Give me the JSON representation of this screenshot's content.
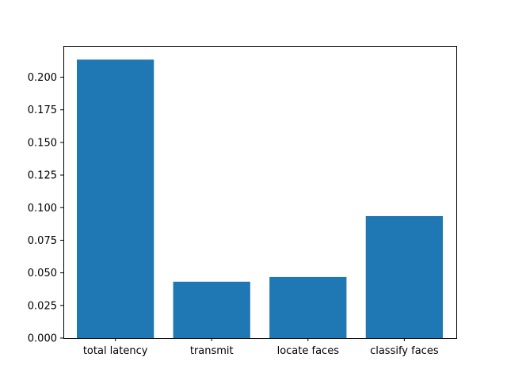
{
  "chart_data": {
    "type": "bar",
    "title": "",
    "xlabel": "",
    "ylabel": "",
    "categories": [
      "total latency",
      "transmit",
      "locate faces",
      "classify faces"
    ],
    "values": [
      0.2135,
      0.0432,
      0.0468,
      0.0935
    ],
    "ylim": [
      0,
      0.224
    ],
    "yticks": [
      "0.000",
      "0.025",
      "0.050",
      "0.075",
      "0.100",
      "0.125",
      "0.150",
      "0.175",
      "0.200"
    ],
    "ytick_values": [
      0,
      0.025,
      0.05,
      0.075,
      0.1,
      0.125,
      0.15,
      0.175,
      0.2
    ],
    "grid": false,
    "legend": "none",
    "bar_color": "#1f77b4"
  }
}
